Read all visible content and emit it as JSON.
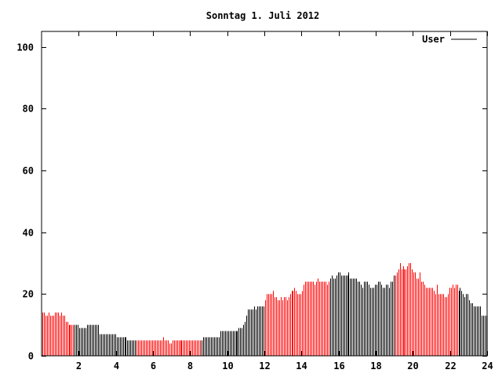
{
  "chart_data": {
    "type": "bar",
    "title": "Sonntag 1. Juli 2012",
    "xlabel": "",
    "ylabel": "",
    "xlim": [
      0,
      24
    ],
    "ylim": [
      0,
      105
    ],
    "x_ticks": [
      2,
      4,
      6,
      8,
      10,
      12,
      14,
      16,
      18,
      20,
      22,
      24
    ],
    "y_ticks": [
      0,
      20,
      40,
      60,
      80,
      100
    ],
    "grid": false,
    "legend": {
      "position": "top-right",
      "entries": [
        {
          "label": "User",
          "color": "#000000"
        }
      ]
    },
    "x_step_hours": 0.0833333,
    "segments": [
      {
        "from": 0,
        "to": 1.75,
        "color": "#ff0000"
      },
      {
        "from": 1.75,
        "to": 5.08,
        "color": "#000000"
      },
      {
        "from": 5.08,
        "to": 8.6,
        "color": "#ff0000"
      },
      {
        "from": 8.6,
        "to": 12.0,
        "color": "#000000"
      },
      {
        "from": 12.0,
        "to": 15.5,
        "color": "#ff0000"
      },
      {
        "from": 15.5,
        "to": 19.0,
        "color": "#000000"
      },
      {
        "from": 19.0,
        "to": 22.4,
        "color": "#ff0000"
      },
      {
        "from": 22.4,
        "to": 24.0,
        "color": "#000000"
      }
    ],
    "series": [
      {
        "name": "User",
        "values": [
          14,
          14,
          13,
          13,
          14,
          13,
          13,
          13,
          14,
          14,
          14,
          13,
          14,
          13,
          13,
          11,
          11,
          10,
          10,
          10,
          10,
          10,
          10,
          10,
          9,
          9,
          9,
          9,
          9,
          10,
          10,
          10,
          10,
          10,
          10,
          10,
          10,
          7,
          7,
          7,
          7,
          7,
          7,
          7,
          7,
          7,
          7,
          7,
          6,
          6,
          6,
          6,
          6,
          6,
          6,
          5,
          5,
          5,
          5,
          5,
          5,
          5,
          5,
          5,
          5,
          5,
          5,
          5,
          5,
          5,
          5,
          5,
          5,
          5,
          5,
          5,
          5,
          5,
          6,
          5,
          5,
          5,
          4,
          4,
          5,
          5,
          5,
          5,
          5,
          5,
          5,
          5,
          5,
          5,
          5,
          5,
          5,
          5,
          5,
          5,
          5,
          5,
          5,
          5,
          6,
          6,
          6,
          6,
          6,
          6,
          6,
          6,
          6,
          6,
          6,
          8,
          8,
          8,
          8,
          8,
          8,
          8,
          8,
          8,
          8,
          8,
          8,
          9,
          9,
          9,
          10,
          11,
          13,
          15,
          15,
          15,
          15,
          16,
          15,
          16,
          16,
          16,
          16,
          16,
          18,
          20,
          20,
          20,
          20,
          21,
          19,
          19,
          18,
          18,
          19,
          18,
          19,
          19,
          18,
          19,
          20,
          21,
          21,
          22,
          21,
          20,
          20,
          20,
          21,
          23,
          24,
          24,
          24,
          24,
          24,
          24,
          23,
          24,
          25,
          24,
          24,
          24,
          24,
          24,
          23,
          24,
          25,
          26,
          25,
          25,
          26,
          27,
          27,
          26,
          26,
          26,
          26,
          26,
          27,
          25,
          25,
          25,
          25,
          25,
          24,
          24,
          23,
          22,
          24,
          24,
          24,
          23,
          22,
          22,
          22,
          23,
          23,
          24,
          24,
          23,
          22,
          22,
          23,
          23,
          22,
          24,
          24,
          26,
          26,
          27,
          28,
          30,
          28,
          29,
          28,
          28,
          29,
          30,
          30,
          28,
          27,
          27,
          25,
          25,
          27,
          24,
          24,
          23,
          22,
          22,
          22,
          22,
          22,
          21,
          20,
          23,
          20,
          20,
          20,
          20,
          19,
          19,
          20,
          22,
          22,
          23,
          22,
          23,
          23,
          21,
          22,
          21,
          20,
          19,
          20,
          20,
          18,
          17,
          17,
          16,
          16,
          16,
          16,
          16,
          13,
          13,
          13,
          13
        ]
      }
    ]
  }
}
